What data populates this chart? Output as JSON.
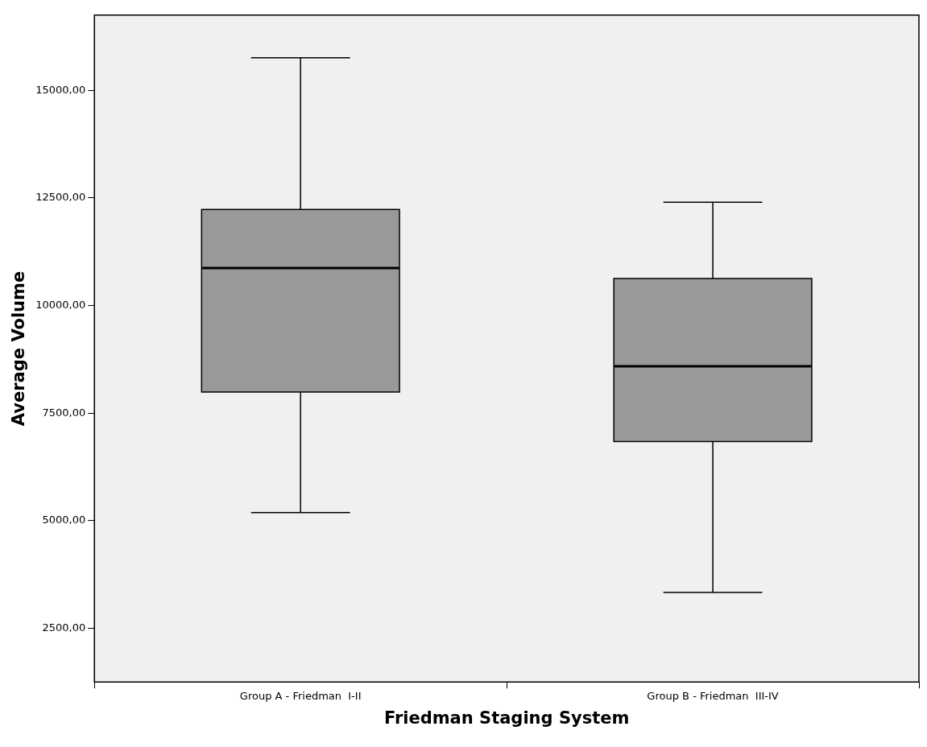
{
  "chart_data": {
    "type": "box",
    "xlabel": "Friedman Staging System",
    "ylabel": "Average Volume",
    "categories": [
      "Group A - Friedman  I-II",
      "Group B - Friedman  III-IV"
    ],
    "series": [
      {
        "color": "#999999",
        "boxes": [
          {
            "low": 5190,
            "q1": 7990,
            "median": 10870,
            "q3": 12230,
            "high": 15760
          },
          {
            "low": 3330,
            "q1": 6840,
            "median": 8590,
            "q3": 10630,
            "high": 12400
          }
        ]
      }
    ],
    "ylim": [
      1250,
      16750
    ],
    "yticks": [
      {
        "value": 2500,
        "label": "2500,00"
      },
      {
        "value": 5000,
        "label": "5000,00"
      },
      {
        "value": 7500,
        "label": "7500,00"
      },
      {
        "value": 10000,
        "label": "10000,00"
      },
      {
        "value": 12500,
        "label": "12500,00"
      },
      {
        "value": 15000,
        "label": "15000,00"
      }
    ],
    "grid": false,
    "legend": false
  }
}
